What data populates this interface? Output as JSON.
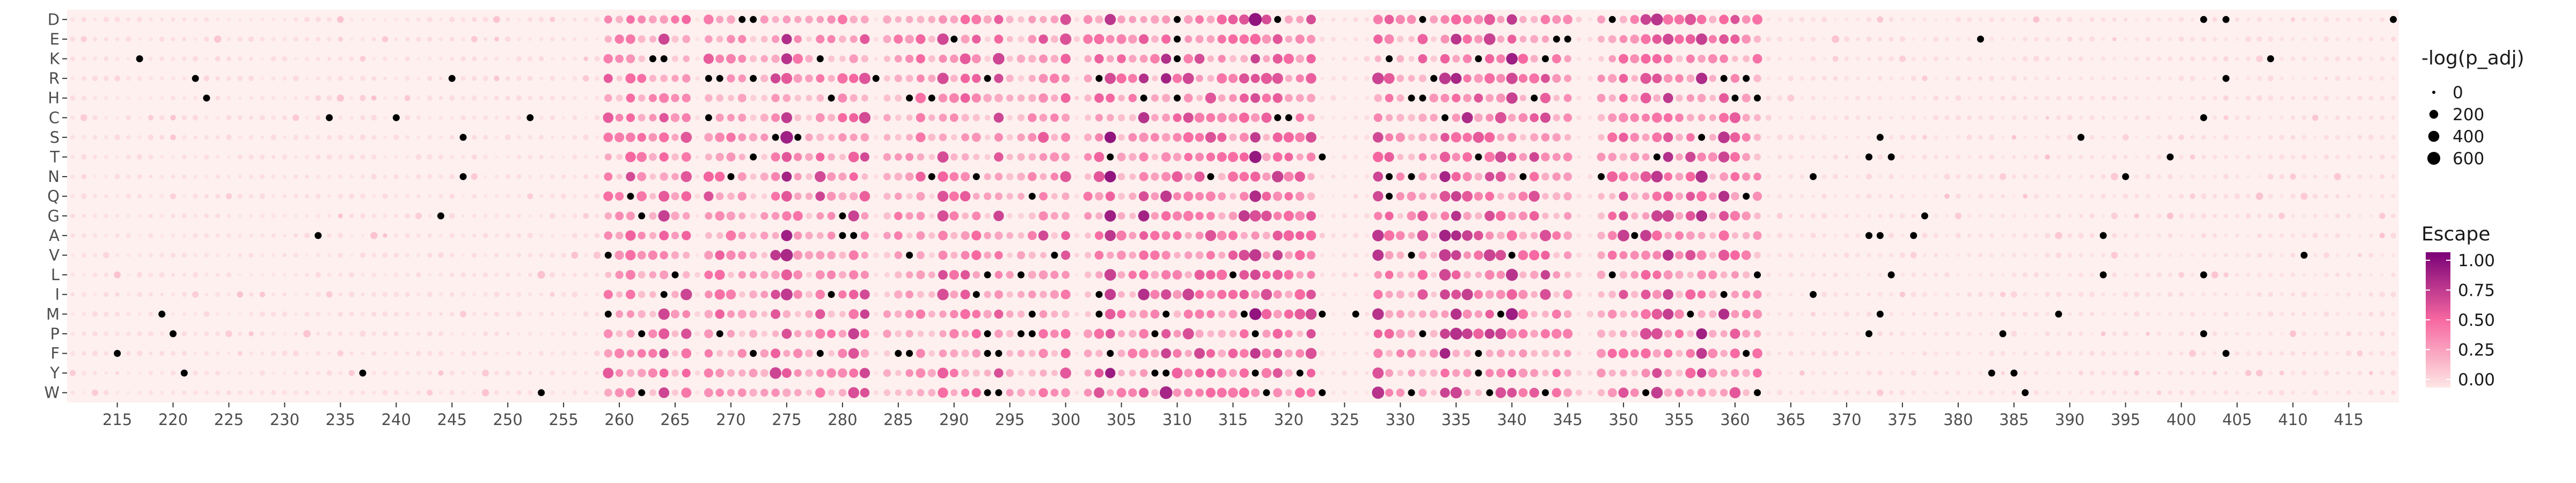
{
  "chart_data": {
    "type": "scatter",
    "subtype": "dot-heatmap",
    "title": "",
    "xlabel": "",
    "ylabel": "",
    "y_categories": [
      "D",
      "E",
      "K",
      "R",
      "H",
      "C",
      "S",
      "T",
      "N",
      "Q",
      "G",
      "A",
      "V",
      "L",
      "I",
      "M",
      "P",
      "F",
      "Y",
      "W"
    ],
    "x_range": [
      211,
      419
    ],
    "x_ticks": [
      215,
      220,
      225,
      230,
      235,
      240,
      245,
      250,
      255,
      260,
      265,
      270,
      275,
      280,
      285,
      290,
      295,
      300,
      305,
      310,
      315,
      320,
      325,
      330,
      335,
      340,
      345,
      350,
      355,
      360,
      365,
      370,
      375,
      380,
      385,
      390,
      395,
      400,
      405,
      410,
      415
    ],
    "panel_background": "#fdf0ef",
    "escape_hotspots": [
      {
        "range": [
          259,
          266
        ],
        "level": 0.75
      },
      {
        "range": [
          268,
          282
        ],
        "level": 0.75
      },
      {
        "range": [
          284,
          300
        ],
        "level": 0.6
      },
      {
        "range": [
          302,
          322
        ],
        "level": 0.85
      },
      {
        "range": [
          328,
          345
        ],
        "level": 0.75
      },
      {
        "range": [
          348,
          362
        ],
        "level": 0.85
      }
    ],
    "background_escape": 0.05,
    "size_legend": {
      "title": "-log(p_adj)",
      "breaks": [
        {
          "label": "0",
          "value": 0
        },
        {
          "label": "200",
          "value": 200
        },
        {
          "label": "400",
          "value": 400
        },
        {
          "label": "600",
          "value": 600
        }
      ]
    },
    "color_legend": {
      "title": "Escape",
      "breaks": [
        {
          "label": "1.00",
          "value": 1.0
        },
        {
          "label": "0.75",
          "value": 0.75
        },
        {
          "label": "0.50",
          "value": 0.5
        },
        {
          "label": "0.25",
          "value": 0.25
        },
        {
          "label": "0.00",
          "value": 0.0
        }
      ],
      "low_color": "#fde6e4",
      "mid_color": "#f768a1",
      "high_color": "#7a0177"
    },
    "na_color": "#000000",
    "grid": false,
    "legend_position": "right"
  }
}
